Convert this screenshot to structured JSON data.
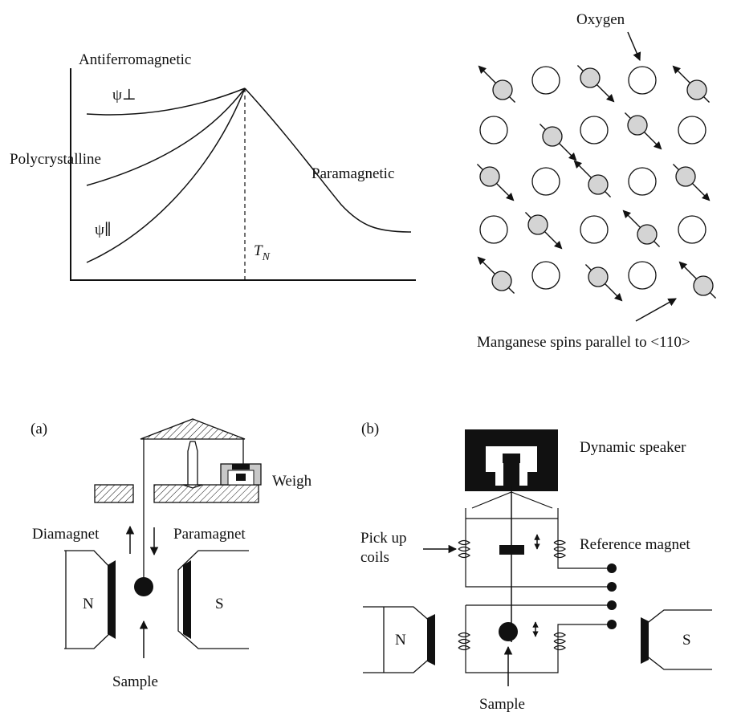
{
  "susceptibility_plot": {
    "antiferromagnetic": "Antiferromagnetic",
    "psi_perp": "ψ⊥",
    "polycrystalline": "Polycrystalline",
    "paramagnetic": "Paramagnetic",
    "psi_par": "ψ∥",
    "tn_letter": "T",
    "tn_sub": "N"
  },
  "lattice": {
    "oxygen": "Oxygen",
    "mn_spins": "Manganese spins parallel to <110>"
  },
  "balance": {
    "tag": "(a)",
    "weigh": "Weigh",
    "diamagnet": "Diamagnet",
    "paramagnet": "Paramagnet",
    "n_pole": "N",
    "s_pole": "S",
    "sample": "Sample"
  },
  "vsm": {
    "tag": "(b)",
    "speaker": "Dynamic speaker",
    "pickup_line1": "Pick up",
    "pickup_line2": "coils",
    "ref_magnet": "Reference magnet",
    "n_pole": "N",
    "s_pole": "S",
    "sample": "Sample"
  },
  "colors": {
    "ink": "#111111",
    "mn_atom": "#d4d4d4",
    "oxygen_atom": "#ffffff",
    "shading": "#c8c8c8"
  }
}
